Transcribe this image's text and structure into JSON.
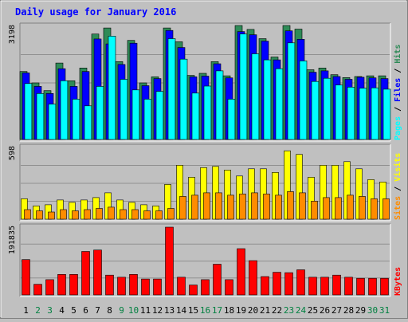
{
  "chart_data": {
    "type": "bar",
    "title": "Daily usage for January 2016",
    "categories": [
      "1",
      "2",
      "3",
      "4",
      "5",
      "6",
      "7",
      "8",
      "9",
      "10",
      "11",
      "12",
      "13",
      "14",
      "15",
      "16",
      "17",
      "18",
      "19",
      "20",
      "21",
      "22",
      "23",
      "24",
      "25",
      "26",
      "27",
      "28",
      "29",
      "30",
      "31"
    ],
    "weekend_days": [
      "2",
      "3",
      "9",
      "10",
      "16",
      "17",
      "23",
      "24",
      "30",
      "31"
    ],
    "panels": [
      {
        "id": "hits-files-pages",
        "max_label": "3198",
        "ylim": [
          0,
          3198
        ],
        "right_labels": [
          "Pages",
          "Files",
          "Hits"
        ],
        "series": [
          {
            "name": "Hits",
            "color": "#2e8b57",
            "values": [
              1920,
              1600,
              1380,
              2160,
              1660,
              2020,
              2980,
              3150,
              2200,
              2800,
              1600,
              1770,
              3150,
              2760,
              1810,
              1870,
              2200,
              1800,
              3220,
              3110,
              2850,
              2330,
              3220,
              3120,
              1970,
              2020,
              1830,
              1750,
              1780,
              1800,
              1800
            ]
          },
          {
            "name": "Files",
            "color": "#0000ff",
            "values": [
              1880,
              1500,
              1300,
              2000,
              1500,
              1920,
              2840,
              2700,
              2120,
              2720,
              1520,
              1720,
              3080,
              2600,
              1770,
              1790,
              2140,
              1740,
              3050,
              2960,
              2780,
              2250,
              3070,
              2830,
              1900,
              1940,
              1780,
              1700,
              1760,
              1740,
              1720
            ]
          },
          {
            "name": "Pages",
            "color": "#00ffff",
            "values": [
              1580,
              1300,
              1000,
              1660,
              1140,
              950,
              1500,
              2920,
              1700,
              1400,
              1140,
              1360,
              2850,
              2270,
              1310,
              1510,
              1940,
              1140,
              2980,
              2420,
              2250,
              2000,
              2730,
              2220,
              1640,
              1730,
              1540,
              1480,
              1450,
              1460,
              1420
            ]
          }
        ]
      },
      {
        "id": "visits-sites",
        "max_label": "598",
        "ylim": [
          0,
          598
        ],
        "right_labels": [
          "Sites",
          "Visits"
        ],
        "series": [
          {
            "name": "Visits",
            "color": "#ffff00",
            "values": [
              170,
              110,
              120,
              160,
              140,
              160,
              180,
              220,
              160,
              140,
              120,
              110,
              290,
              450,
              350,
              430,
              440,
              410,
              360,
              420,
              420,
              390,
              570,
              540,
              350,
              450,
              450,
              480,
              420,
              330,
              310
            ]
          },
          {
            "name": "Sites",
            "color": "#ff8c00",
            "values": [
              80,
              70,
              60,
              80,
              70,
              80,
              90,
              100,
              80,
              80,
              70,
              70,
              90,
              190,
              200,
              220,
              220,
              200,
              210,
              220,
              210,
              200,
              230,
              220,
              150,
              180,
              180,
              200,
              190,
              170,
              170
            ]
          }
        ]
      },
      {
        "id": "kbytes",
        "max_label": "191835",
        "ylim": [
          0,
          191835
        ],
        "right_labels": [
          "KBytes"
        ],
        "series": [
          {
            "name": "KBytes",
            "color": "#ff0000",
            "values": [
              100000,
              30000,
              43000,
              58000,
              58000,
              123000,
              127000,
              56000,
              50000,
              58000,
              45000,
              45000,
              191835,
              50000,
              28000,
              43000,
              87000,
              43000,
              131000,
              97000,
              52000,
              64000,
              63000,
              71000,
              50000,
              50000,
              56000,
              50000,
              47000,
              47000,
              47000
            ]
          }
        ]
      }
    ],
    "colors": {
      "background": "#c0c0c0",
      "panel_background": "#c0c0c0",
      "grid": "#909090",
      "title": "#0000ff",
      "label_dark": "#000000",
      "label_weekend": "#008040",
      "frame_dark": "#808080",
      "frame_light": "#ffffff"
    }
  }
}
